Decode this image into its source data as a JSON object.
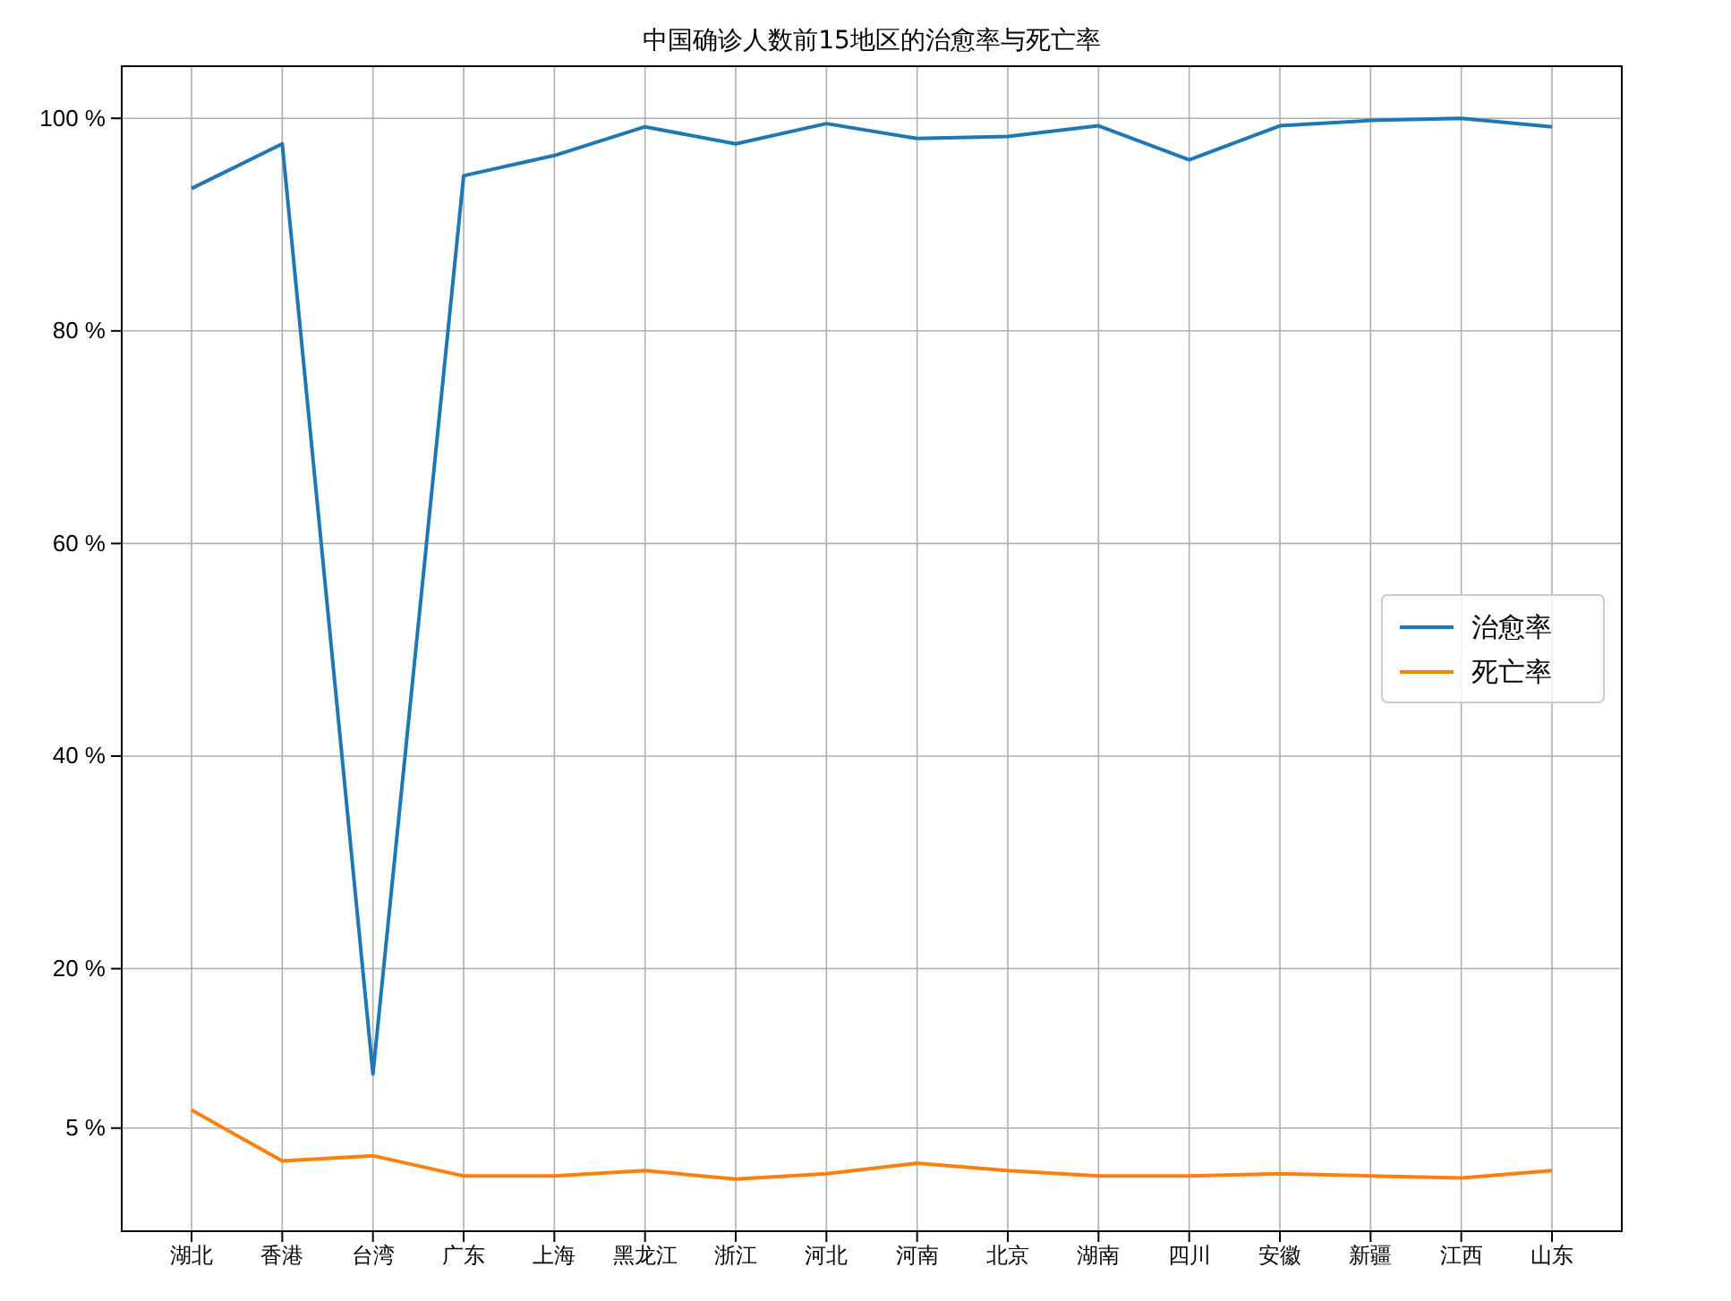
{
  "chart_data": {
    "type": "line",
    "title": "中国确诊人数前15地区的治愈率与死亡率",
    "categories": [
      "湖北",
      "香港",
      "台湾",
      "广东",
      "上海",
      "黑龙江",
      "浙江",
      "河北",
      "河南",
      "北京",
      "湖南",
      "四川",
      "安徽",
      "新疆",
      "江西",
      "山东"
    ],
    "series": [
      {
        "name": "治愈率",
        "color": "#1f77b4",
        "values": [
          93.4,
          97.6,
          10.1,
          94.6,
          96.5,
          99.2,
          97.6,
          99.5,
          98.1,
          98.3,
          99.3,
          96.1,
          99.3,
          99.8,
          100,
          99.2
        ]
      },
      {
        "name": "死亡率",
        "color": "#ff7f0e",
        "values": [
          6.7,
          1.9,
          2.4,
          0.5,
          0.5,
          1.0,
          0.2,
          0.7,
          1.7,
          1.0,
          0.5,
          0.5,
          0.7,
          0.5,
          0.3,
          1.0
        ]
      }
    ],
    "ylim": [
      -4.7,
      104.9
    ],
    "yticks": [
      {
        "value": 5,
        "label": "5 %"
      },
      {
        "value": 20,
        "label": "20 %"
      },
      {
        "value": 40,
        "label": "40 %"
      },
      {
        "value": 60,
        "label": "60 %"
      },
      {
        "value": 80,
        "label": "80 %"
      },
      {
        "value": 100,
        "label": "100 %"
      }
    ],
    "grid": true,
    "legend": "right",
    "line_style": "solid",
    "marker": "none"
  }
}
